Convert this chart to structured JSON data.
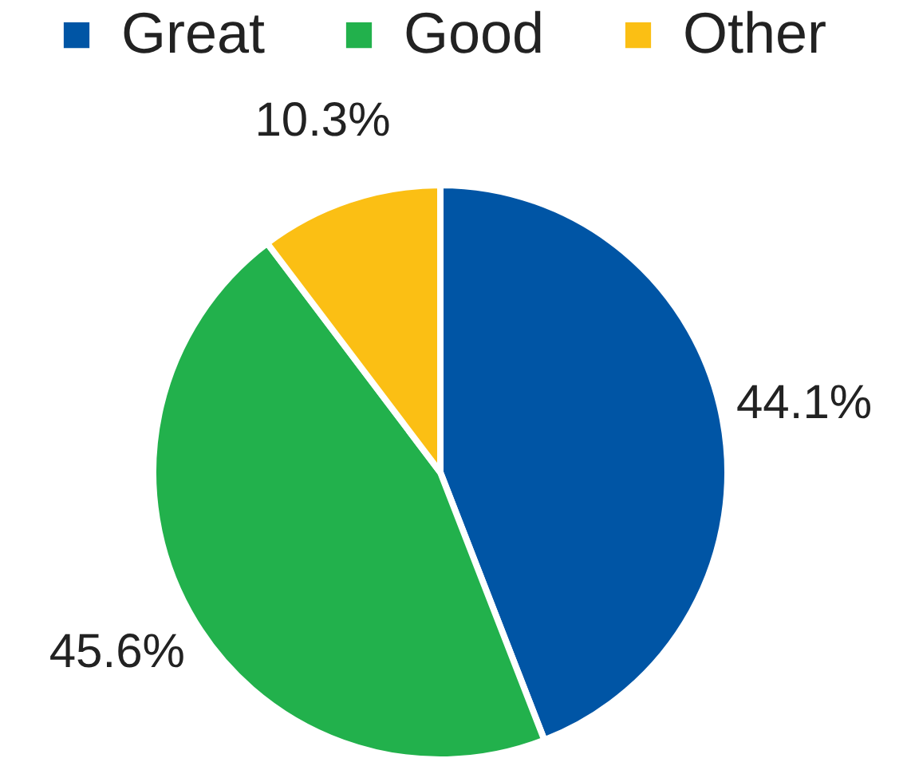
{
  "chart_data": {
    "type": "pie",
    "categories": [
      "Great",
      "Good",
      "Other"
    ],
    "values": [
      44.1,
      45.6,
      10.3
    ],
    "colors": [
      "#0055a5",
      "#22b14c",
      "#fbbf14"
    ],
    "value_labels": [
      "44.1%",
      "45.6%",
      "10.3%"
    ],
    "legend": "top"
  }
}
